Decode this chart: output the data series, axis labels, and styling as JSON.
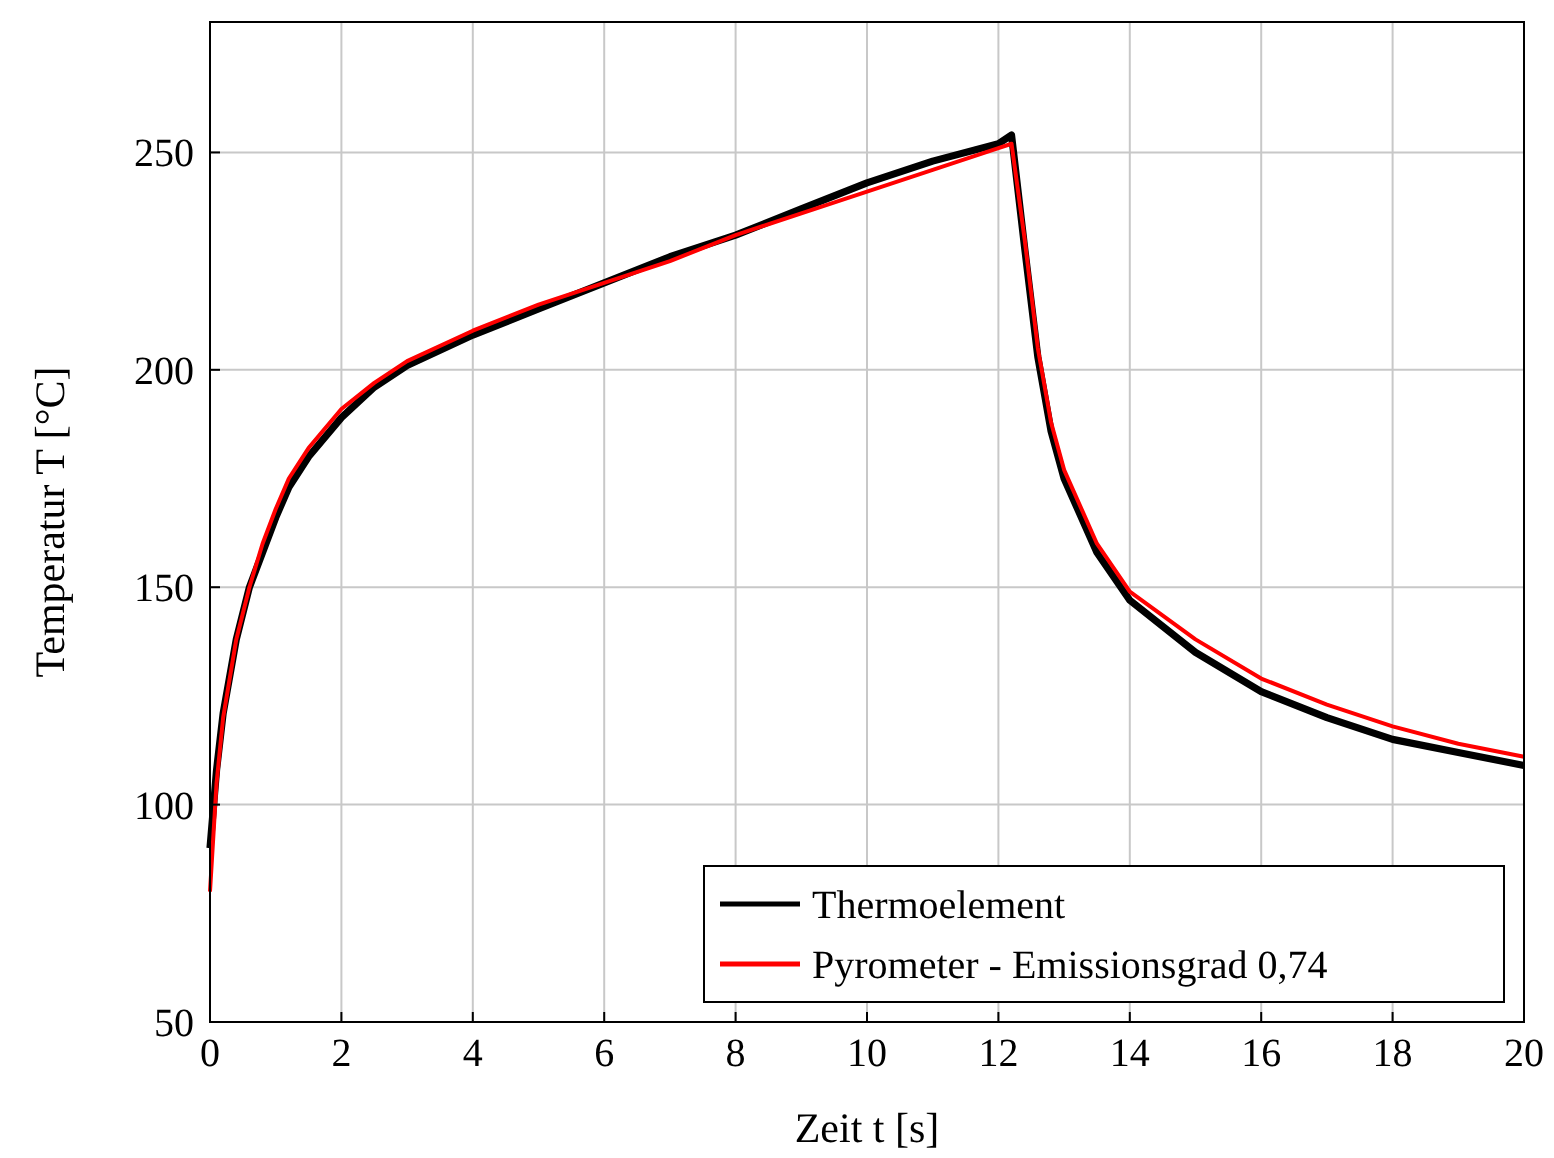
{
  "chart_data": {
    "type": "line",
    "xlabel": "Zeit t [s]",
    "ylabel": "Temperatur T [°C]",
    "xlim": [
      0,
      20
    ],
    "ylim": [
      50,
      280
    ],
    "xticks": [
      0,
      2,
      4,
      6,
      8,
      10,
      12,
      14,
      16,
      18,
      20
    ],
    "yticks": [
      50,
      100,
      150,
      200,
      250
    ],
    "grid": true,
    "legend": "bottom right",
    "line_style": "solid",
    "series": [
      {
        "name": "Thermoelement",
        "color": "#000000",
        "x": [
          0,
          0.1,
          0.2,
          0.4,
          0.6,
          0.8,
          1,
          1.2,
          1.5,
          2,
          2.5,
          3,
          4,
          5,
          6,
          7,
          8,
          9,
          10,
          11,
          12,
          12.2,
          12.4,
          12.6,
          12.8,
          13,
          13.5,
          14,
          15,
          16,
          17,
          18,
          19,
          20
        ],
        "values": [
          90,
          108,
          121,
          138,
          150,
          158,
          166,
          173,
          180,
          189,
          196,
          201,
          208,
          214,
          220,
          226,
          231,
          237,
          243,
          248,
          252,
          254,
          228,
          203,
          186,
          175,
          158,
          147,
          135,
          126,
          120,
          115,
          112,
          109
        ]
      },
      {
        "name": "Pyrometer - Emissionsgrad 0,74",
        "color": "#ff0000",
        "x": [
          0,
          0.1,
          0.2,
          0.4,
          0.6,
          0.8,
          1,
          1.2,
          1.5,
          2,
          2.5,
          3,
          4,
          5,
          6,
          7,
          8,
          9,
          10,
          11,
          12,
          12.2,
          12.4,
          12.6,
          12.8,
          13,
          13.5,
          14,
          15,
          16,
          17,
          18,
          19,
          20
        ],
        "values": [
          80,
          105,
          120,
          138,
          150,
          160,
          168,
          175,
          182,
          191,
          197,
          202,
          209,
          215,
          220,
          225,
          231,
          236,
          241,
          246,
          251,
          252,
          230,
          205,
          188,
          177,
          160,
          149,
          138,
          129,
          123,
          118,
          114,
          111
        ]
      }
    ]
  }
}
